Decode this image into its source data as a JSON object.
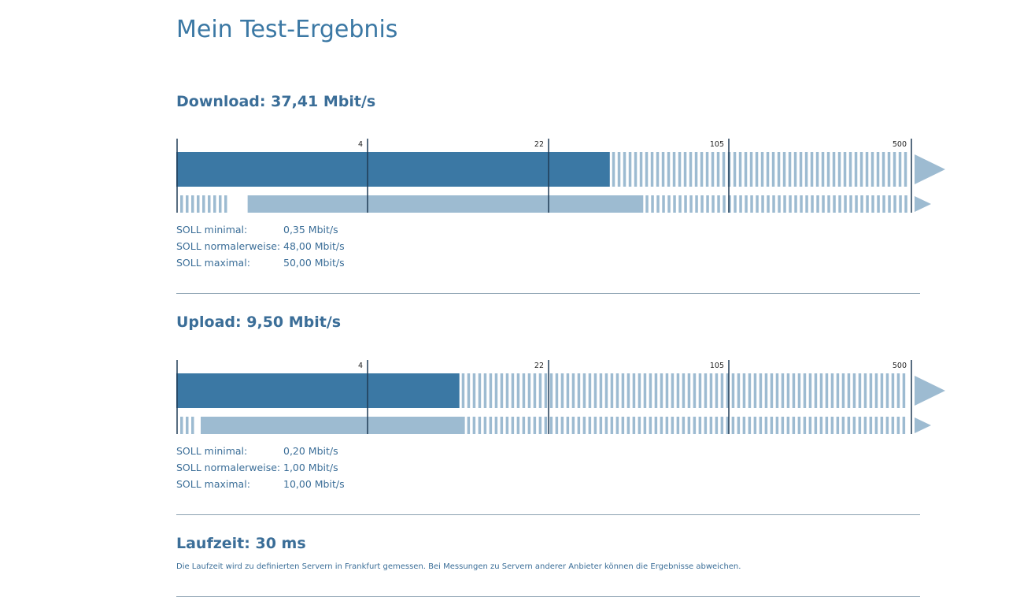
{
  "page": {
    "title": "Mein Test-Ergebnis"
  },
  "colors": {
    "primary": "#3b78a4",
    "secondary": "#9dbbd1",
    "tick": "#1f3b55"
  },
  "scale_ticks": [
    "4",
    "22",
    "105",
    "500"
  ],
  "download": {
    "label": "Download:",
    "value_text": "37,41 Mbit/s",
    "measured_mbit": 37.41,
    "soll": [
      {
        "label": "SOLL minimal:",
        "value": "0,35 Mbit/s"
      },
      {
        "label": "SOLL normalerweise:",
        "value": "48,00 Mbit/s"
      },
      {
        "label": "SOLL maximal:",
        "value": "50,00 Mbit/s"
      }
    ],
    "soll_min_mbit": 0.35,
    "soll_max_mbit": 50.0
  },
  "upload": {
    "label": "Upload:",
    "value_text": "9,50 Mbit/s",
    "measured_mbit": 9.5,
    "soll": [
      {
        "label": "SOLL minimal:",
        "value": "0,20 Mbit/s"
      },
      {
        "label": "SOLL normalerweise:",
        "value": "1,00 Mbit/s"
      },
      {
        "label": "SOLL maximal:",
        "value": "10,00 Mbit/s"
      }
    ],
    "soll_min_mbit": 0.2,
    "soll_max_mbit": 10.0
  },
  "latency": {
    "label": "Laufzeit:",
    "value_text": "30 ms",
    "note": "Die Laufzeit wird zu definierten Servern in Frankfurt gemessen. Bei Messungen zu Servern anderer Anbieter können die Ergebnisse abweichen."
  }
}
